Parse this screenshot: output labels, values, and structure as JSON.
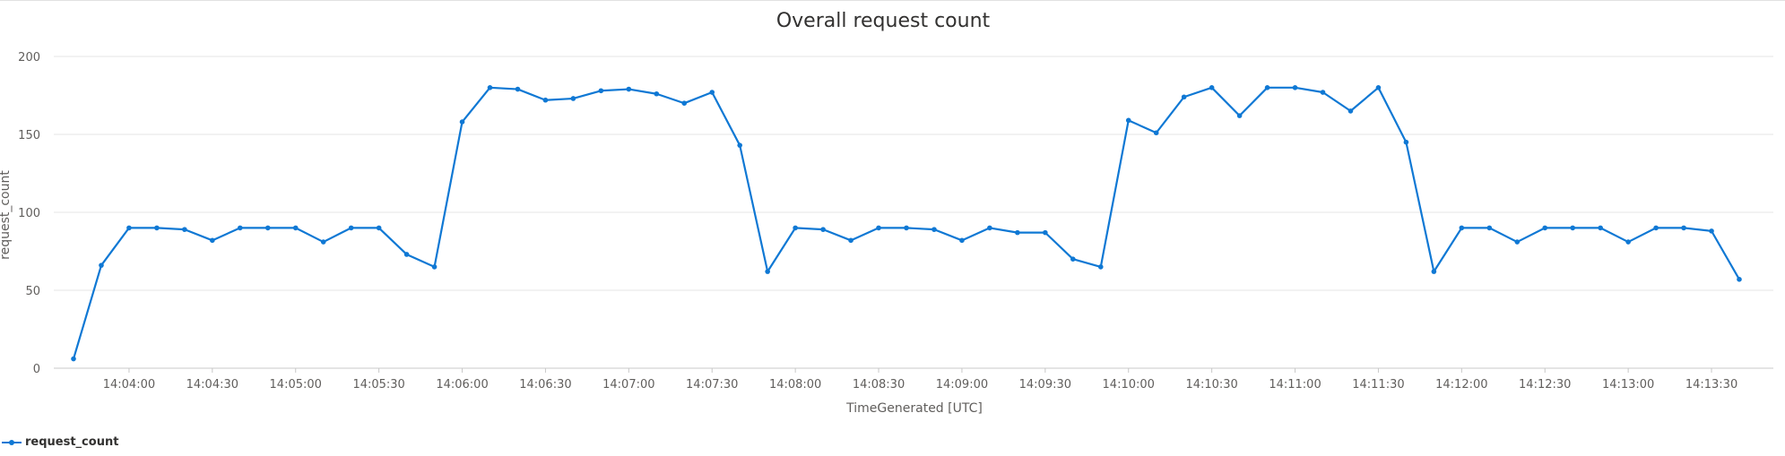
{
  "chart_data": {
    "type": "line",
    "title": "Overall request count",
    "xlabel": "TimeGenerated [UTC]",
    "ylabel": "request_count",
    "ylim": [
      0,
      200
    ],
    "yticks": [
      "0",
      "50",
      "100",
      "150",
      "200"
    ],
    "grid": true,
    "legend_position": "bottom-left",
    "x_tick_labels": [
      "14:04:00",
      "14:04:30",
      "14:05:00",
      "14:05:30",
      "14:06:00",
      "14:06:30",
      "14:07:00",
      "14:07:30",
      "14:08:00",
      "14:08:30",
      "14:09:00",
      "14:09:30",
      "14:10:00",
      "14:10:30",
      "14:11:00",
      "14:11:30",
      "14:12:00",
      "14:12:30",
      "14:13:00",
      "14:13:30"
    ],
    "x": [
      "14:03:40",
      "14:03:50",
      "14:04:00",
      "14:04:10",
      "14:04:20",
      "14:04:30",
      "14:04:40",
      "14:04:50",
      "14:05:00",
      "14:05:10",
      "14:05:20",
      "14:05:30",
      "14:05:40",
      "14:05:50",
      "14:06:00",
      "14:06:10",
      "14:06:20",
      "14:06:30",
      "14:06:40",
      "14:06:50",
      "14:07:00",
      "14:07:10",
      "14:07:20",
      "14:07:30",
      "14:07:40",
      "14:07:50",
      "14:08:00",
      "14:08:10",
      "14:08:20",
      "14:08:30",
      "14:08:40",
      "14:08:50",
      "14:09:00",
      "14:09:10",
      "14:09:20",
      "14:09:30",
      "14:09:40",
      "14:09:50",
      "14:10:00",
      "14:10:10",
      "14:10:20",
      "14:10:30",
      "14:10:40",
      "14:10:50",
      "14:11:00",
      "14:11:10",
      "14:11:20",
      "14:11:30",
      "14:11:40",
      "14:11:50",
      "14:12:00",
      "14:12:10",
      "14:12:20",
      "14:12:30",
      "14:12:40",
      "14:12:50",
      "14:13:00",
      "14:13:10",
      "14:13:20",
      "14:13:30",
      "14:13:40"
    ],
    "series": [
      {
        "name": "request_count",
        "color": "#0f78d4",
        "values": [
          6,
          66,
          90,
          90,
          89,
          82,
          90,
          90,
          90,
          81,
          90,
          90,
          73,
          65,
          158,
          180,
          179,
          172,
          173,
          178,
          179,
          176,
          170,
          177,
          143,
          62,
          90,
          89,
          82,
          90,
          90,
          89,
          82,
          90,
          87,
          87,
          70,
          65,
          159,
          151,
          174,
          180,
          162,
          180,
          180,
          177,
          165,
          180,
          145,
          62,
          90,
          90,
          81,
          90,
          90,
          90,
          81,
          90,
          90,
          88,
          57
        ]
      }
    ]
  }
}
